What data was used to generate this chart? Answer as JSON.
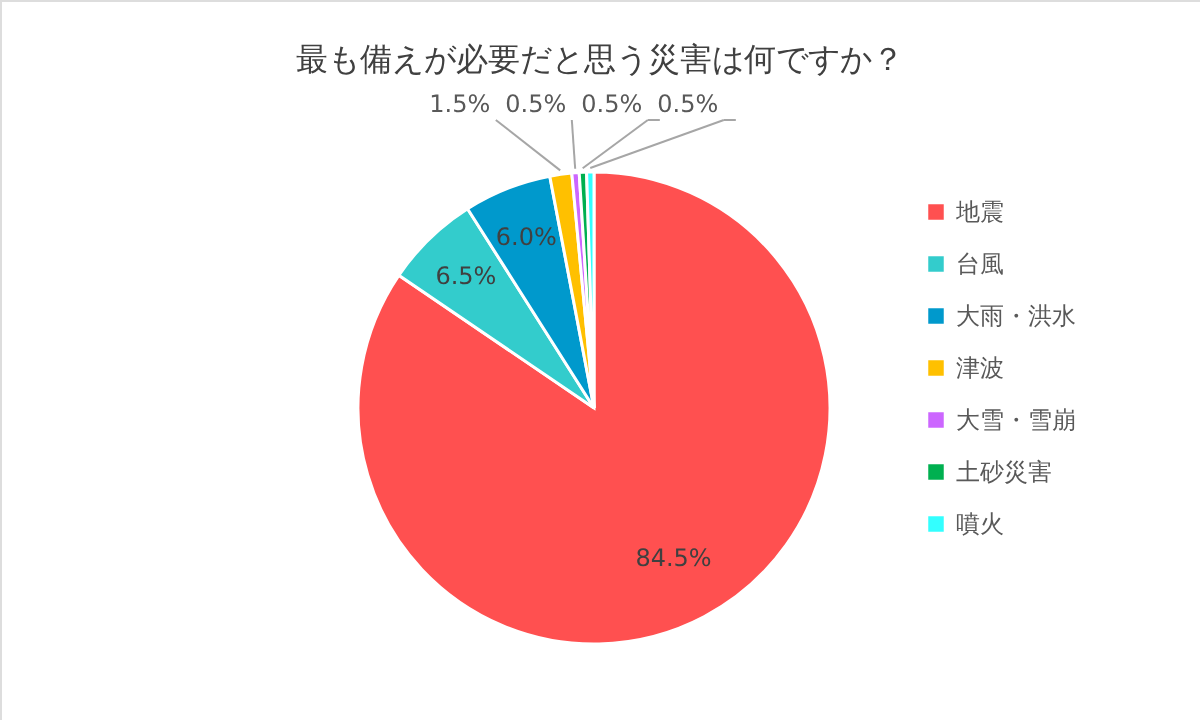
{
  "chart_data": {
    "type": "pie",
    "title": "最も備えが必要だと思う災害は何ですか？",
    "categories": [
      "地震",
      "台風",
      "大雨・洪水",
      "津波",
      "大雪・雪崩",
      "土砂災害",
      "噴火"
    ],
    "values": [
      84.5,
      6.5,
      6.0,
      1.5,
      0.5,
      0.5,
      0.5
    ],
    "colors": [
      "#ff5050",
      "#33cccc",
      "#0099cc",
      "#ffc000",
      "#cc66ff",
      "#00b050",
      "#33ffff"
    ],
    "value_labels": [
      "84.5%",
      "6.5%",
      "6.0%",
      "1.5%",
      "0.5%",
      "0.5%",
      "0.5%"
    ],
    "legend": "right"
  }
}
